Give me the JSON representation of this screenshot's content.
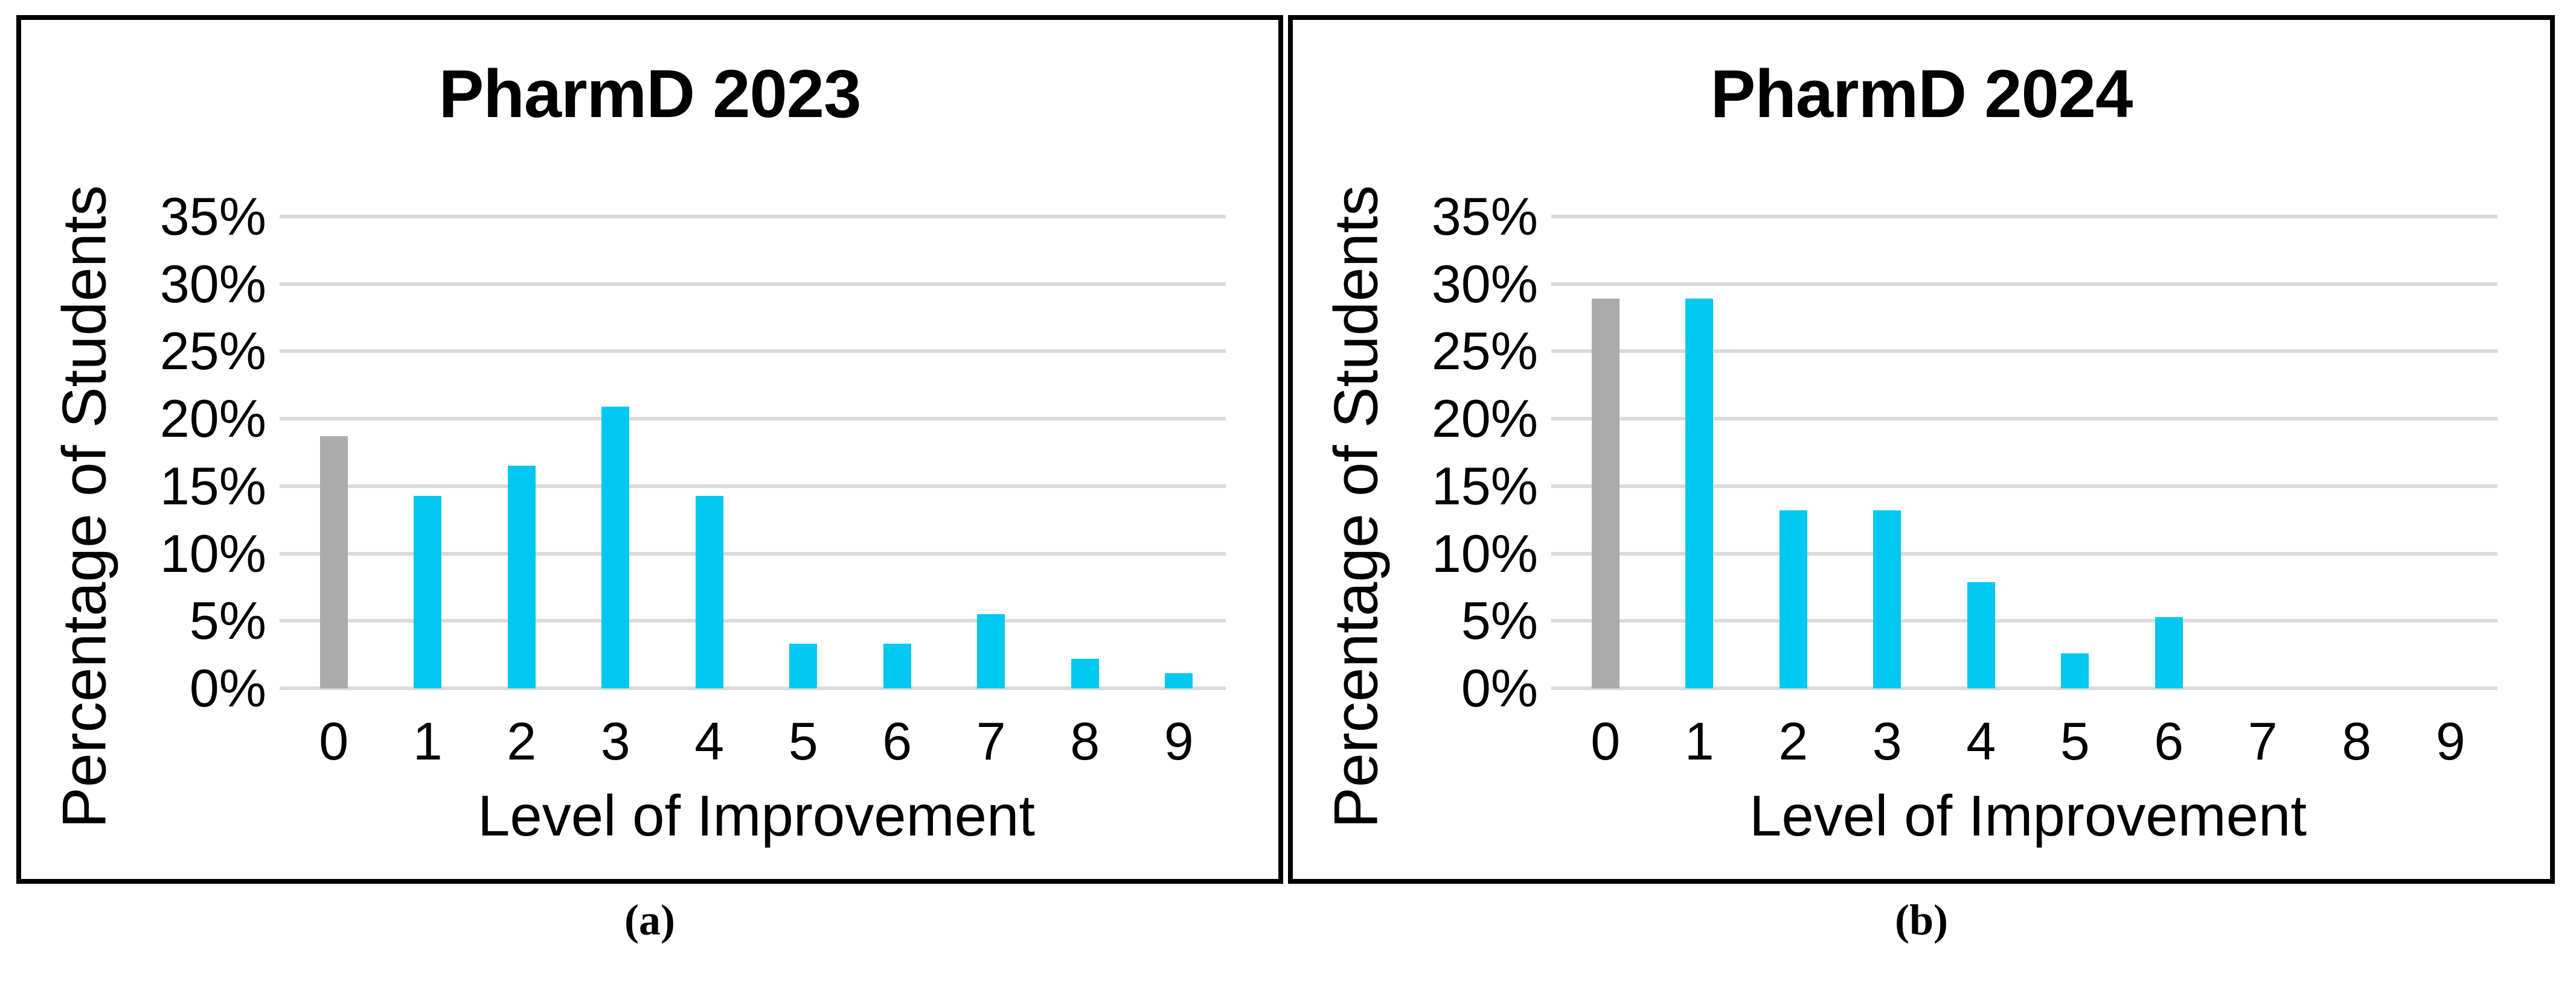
{
  "figure": {
    "captions": [
      "(a)",
      "(b)"
    ]
  },
  "colors": {
    "bar_accent": "#00C8F0",
    "bar_neutral": "#ABABAB",
    "gridline": "#DADADA",
    "frame": "#000000"
  },
  "chart_data": [
    {
      "type": "bar",
      "title": "PharmD 2023",
      "xlabel": "Level of Improvement",
      "ylabel": "Percentage of Students",
      "categories": [
        "0",
        "1",
        "2",
        "3",
        "4",
        "5",
        "6",
        "7",
        "8",
        "9"
      ],
      "values": [
        18.7,
        14.3,
        16.5,
        20.9,
        14.3,
        3.3,
        3.3,
        5.5,
        2.2,
        1.1
      ],
      "bar_colors": [
        "#ABABAB",
        "#00C8F0",
        "#00C8F0",
        "#00C8F0",
        "#00C8F0",
        "#00C8F0",
        "#00C8F0",
        "#00C8F0",
        "#00C8F0",
        "#00C8F0"
      ],
      "ylim": [
        0,
        35
      ],
      "ytick_labels": [
        "0%",
        "5%",
        "10%",
        "15%",
        "20%",
        "25%",
        "30%",
        "35%"
      ],
      "grid": true,
      "legend": "none"
    },
    {
      "type": "bar",
      "title": "PharmD 2024",
      "xlabel": "Level of Improvement",
      "ylabel": "Percentage of Students",
      "categories": [
        "0",
        "1",
        "2",
        "3",
        "4",
        "5",
        "6",
        "7",
        "8",
        "9"
      ],
      "values": [
        28.9,
        28.9,
        13.2,
        13.2,
        7.9,
        2.6,
        5.3,
        0,
        0,
        0
      ],
      "bar_colors": [
        "#ABABAB",
        "#00C8F0",
        "#00C8F0",
        "#00C8F0",
        "#00C8F0",
        "#00C8F0",
        "#00C8F0",
        "#00C8F0",
        "#00C8F0",
        "#00C8F0"
      ],
      "ylim": [
        0,
        35
      ],
      "ytick_labels": [
        "0%",
        "5%",
        "10%",
        "15%",
        "20%",
        "25%",
        "30%",
        "35%"
      ],
      "grid": true,
      "legend": "none"
    }
  ]
}
